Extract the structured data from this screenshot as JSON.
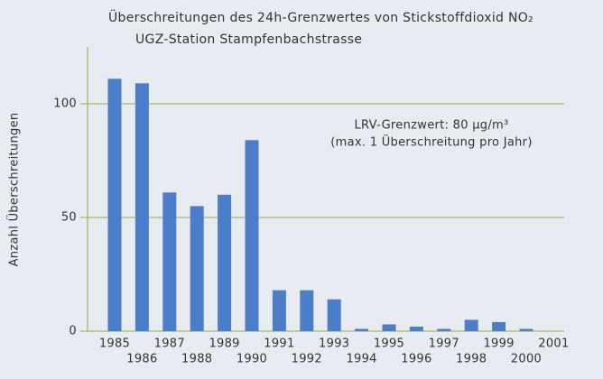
{
  "chart_data": {
    "type": "bar",
    "title": "Überschreitungen des 24h-Grenzwertes von Stickstoffdioxid NO₂",
    "subtitle": "UGZ-Station Stampfenbachstrasse",
    "y_label": "Anzahl Überschreitungen",
    "annotations": [
      "LRV-Grenzwert: 80 µg/m³",
      "(max. 1 Überschreitung pro Jahr)"
    ],
    "categories": [
      "1985",
      "1986",
      "1987",
      "1988",
      "1989",
      "1990",
      "1991",
      "1992",
      "1993",
      "1994",
      "1995",
      "1996",
      "1997",
      "1998",
      "1999",
      "2000",
      "2001"
    ],
    "values": [
      111,
      109,
      61,
      55,
      60,
      84,
      18,
      18,
      14,
      1,
      3,
      2,
      1,
      5,
      4,
      1,
      null
    ],
    "color": "#4a7ecb",
    "grid_color": "#8ab33c",
    "ylim": [
      0,
      125
    ],
    "yticks": [
      0,
      50,
      100
    ],
    "grid": true
  }
}
